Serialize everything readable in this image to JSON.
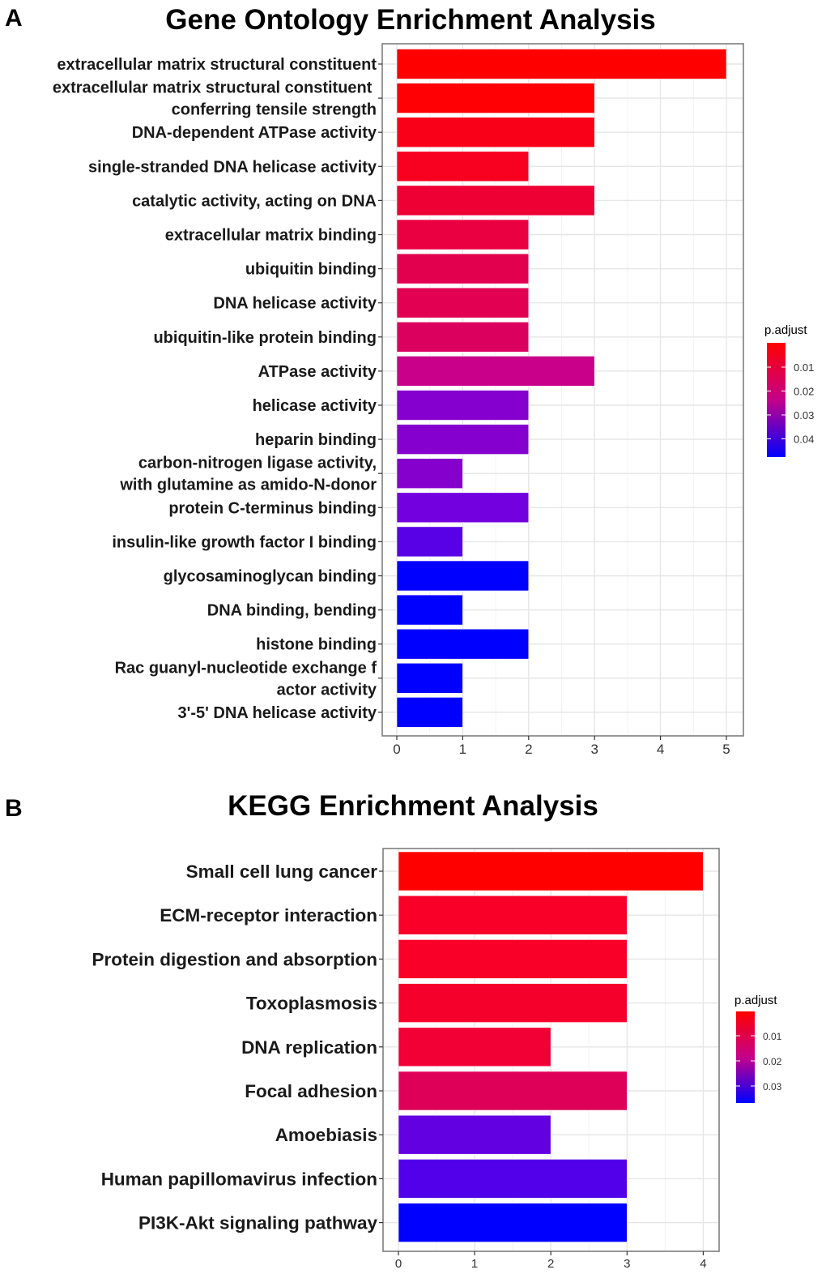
{
  "chart_data": [
    {
      "type": "bar",
      "orientation": "horizontal",
      "panel_label": "A",
      "title": "Gene Ontology Enrichment Analysis",
      "xlabel": "",
      "ylabel": "",
      "xlim": [
        0,
        5
      ],
      "xticks": [
        "0",
        "1",
        "2",
        "3",
        "4",
        "5"
      ],
      "grid": true,
      "categories": [
        [
          "extracellular matrix structural constituent"
        ],
        [
          "extracellular matrix structural constituent ",
          "conferring tensile strength"
        ],
        [
          "DNA-dependent ATPase activity"
        ],
        [
          "single-stranded DNA helicase activity"
        ],
        [
          "catalytic activity, acting on DNA"
        ],
        [
          "extracellular matrix binding"
        ],
        [
          "ubiquitin binding"
        ],
        [
          "DNA helicase activity"
        ],
        [
          "ubiquitin-like protein binding"
        ],
        [
          "ATPase activity "
        ],
        [
          "helicase activity"
        ],
        [
          "heparin binding"
        ],
        [
          "carbon-nitrogen ligase activity,",
          "with glutamine as amido-N-donor"
        ],
        [
          "protein C-terminus binding"
        ],
        [
          "insulin-like growth factor I binding"
        ],
        [
          "glycosaminoglycan binding"
        ],
        [
          "DNA binding, bending"
        ],
        [
          "histone binding "
        ],
        [
          "Rac guanyl-nucleotide exchange f",
          "actor activity"
        ],
        [
          "3'-5' DNA helicase activity"
        ]
      ],
      "values": [
        5,
        3,
        3,
        2,
        3,
        2,
        2,
        2,
        2,
        3,
        2,
        2,
        1,
        2,
        1,
        2,
        1,
        2,
        1,
        1
      ],
      "colors": [
        "#FF0000",
        "#FF0004",
        "#FA0018",
        "#F80020",
        "#EE0035",
        "#EA0040",
        "#E2004E",
        "#E10052",
        "#DC005E",
        "#C8008A",
        "#8500CF",
        "#8500CF",
        "#8500CC",
        "#7300DF",
        "#5800E6",
        "#0000FF",
        "#0000FF",
        "#0000FF",
        "#0000FF",
        "#0000FF"
      ],
      "legend": {
        "title": "p.adjust",
        "position": "right",
        "ticks": [
          "0.01",
          "0.02",
          "0.03",
          "0.04"
        ],
        "gradient": [
          "#FF0000",
          "#0000FF"
        ]
      }
    },
    {
      "type": "bar",
      "orientation": "horizontal",
      "panel_label": "B",
      "title": "KEGG Enrichment Analysis",
      "xlabel": "",
      "ylabel": "",
      "xlim": [
        0,
        4
      ],
      "xticks": [
        "0",
        "1",
        "2",
        "3",
        "4"
      ],
      "grid": true,
      "categories": [
        [
          "Small cell lung cancer "
        ],
        [
          "ECM-receptor interaction"
        ],
        [
          "Protein digestion and absorption"
        ],
        [
          "Toxoplasmosis"
        ],
        [
          "DNA replication"
        ],
        [
          "Focal adhesion"
        ],
        [
          "Amoebiasis"
        ],
        [
          "Human papillomavirus infection"
        ],
        [
          "PI3K-Akt signaling pathway"
        ]
      ],
      "values": [
        4,
        3,
        3,
        3,
        2,
        3,
        2,
        3,
        3
      ],
      "colors": [
        "#FF0000",
        "#F80028",
        "#F80028",
        "#F4002A",
        "#F20035",
        "#DE0058",
        "#6200E2",
        "#5200EA",
        "#0000FF"
      ],
      "legend": {
        "title": "p.adjust",
        "position": "right",
        "ticks": [
          "0.01",
          "0.02",
          "0.03"
        ],
        "gradient": [
          "#FF0000",
          "#0000FF"
        ]
      }
    }
  ]
}
